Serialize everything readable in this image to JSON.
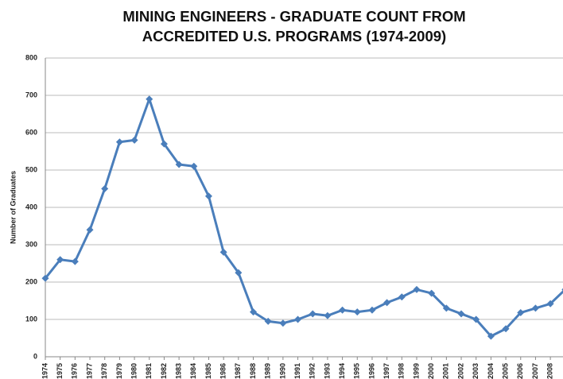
{
  "chart_data": {
    "type": "line",
    "title": "MINING ENGINEERS - GRADUATE COUNT FROM ACCREDITED U.S. PROGRAMS (1974-2009)",
    "y_label": "Number of Graduates",
    "categories": [
      "1974",
      "1975",
      "1976",
      "1977",
      "1978",
      "1979",
      "1980",
      "1981",
      "1982",
      "1983",
      "1984",
      "1985",
      "1986",
      "1987",
      "1988",
      "1989",
      "1990",
      "1991",
      "1992",
      "1993",
      "1994",
      "1995",
      "1996",
      "1997",
      "1998",
      "1999",
      "2000",
      "2001",
      "2002",
      "2003",
      "2004",
      "2005",
      "2006",
      "2007",
      "2008",
      null
    ],
    "values": [
      210,
      260,
      255,
      340,
      450,
      575,
      580,
      690,
      570,
      515,
      510,
      430,
      280,
      225,
      120,
      95,
      90,
      100,
      115,
      110,
      125,
      120,
      125,
      145,
      160,
      180,
      170,
      130,
      115,
      100,
      55,
      75,
      118,
      130,
      142,
      180
    ],
    "color": "#4a7ebb",
    "ylim": [
      0,
      800
    ],
    "yticks": [
      0,
      100,
      200,
      300,
      400,
      500,
      600,
      700,
      800
    ],
    "grid": true
  }
}
